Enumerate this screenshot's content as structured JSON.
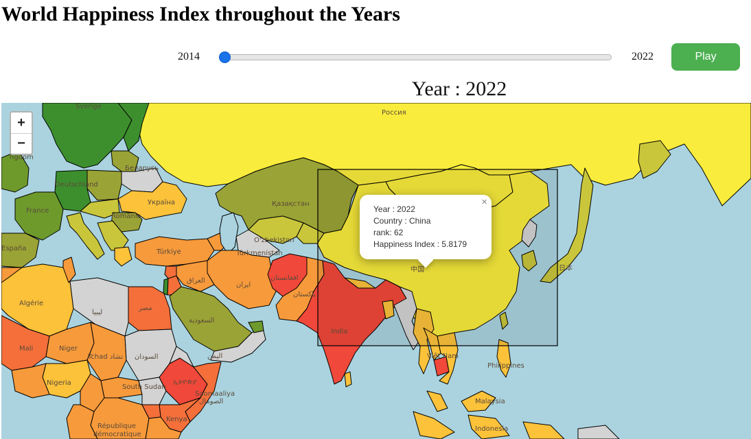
{
  "page": {
    "title": "World Happiness Index throughout the Years"
  },
  "controls": {
    "year_min": "2014",
    "year_max": "2022",
    "slider_value": 2014,
    "play_label": "Play"
  },
  "map": {
    "title": "Year : 2022",
    "zoom_in": "+",
    "zoom_out": "−",
    "labels": {
      "russia": "Россия",
      "kingdom": "ngdom",
      "sverige": "Sverige",
      "deutschland": "Deutschland",
      "belarus": "Беларусь",
      "ukraine": "Україна",
      "france": "France",
      "romania": "România",
      "kazakhstan": "Қазақстан",
      "uzbekistan": "O'zbekiston",
      "turkmenistan": "Türkmenistan",
      "espana": "España",
      "turkiye": "Türkiye",
      "iraq": "العراق",
      "iran": "ایران",
      "afghanistan": "افغانستان",
      "pakistan": "پاکستان",
      "algerie": "Algérie",
      "libya": "ليبيا",
      "egypt": "مصر",
      "saudi": "السعودية",
      "yemen": "اليمن",
      "mali": "Mali",
      "niger": "Niger",
      "chad": "Tchad تشاد",
      "sudan": "السودان",
      "nigeria": "Nigeria",
      "south_sudan": "South Sudan",
      "ethiopia": "ኢትዮጵያ",
      "somalia": "Soomaaliya",
      "somalia_ar": "الصومال",
      "kenya": "Kenya",
      "rdc1": "République",
      "rdc2": "démocratique",
      "india": "India",
      "china": "中国",
      "vietnam": "Việt Nam",
      "philippines": "Philippines",
      "malaysia": "Malaysia",
      "indonesia": "Indonesia",
      "japan": "日本"
    },
    "colors": {
      "water": "#aad3df",
      "very_high": "#3d8f2e",
      "high": "#6e9a2c",
      "upper_mid": "#9aa335",
      "mid": "#c9c63c",
      "yellow": "#f9ec3c",
      "orange_yellow": "#fbc23a",
      "orange": "#f79a3b",
      "orange_red": "#f46f3a",
      "red": "#f0483a",
      "no_data": "#d3d3d3"
    }
  },
  "popup": {
    "line_year": "Year : 2022",
    "line_country": "Country : China",
    "line_rank": "rank: 62",
    "line_index": "Happiness Index : 5.8179",
    "close": "×"
  }
}
